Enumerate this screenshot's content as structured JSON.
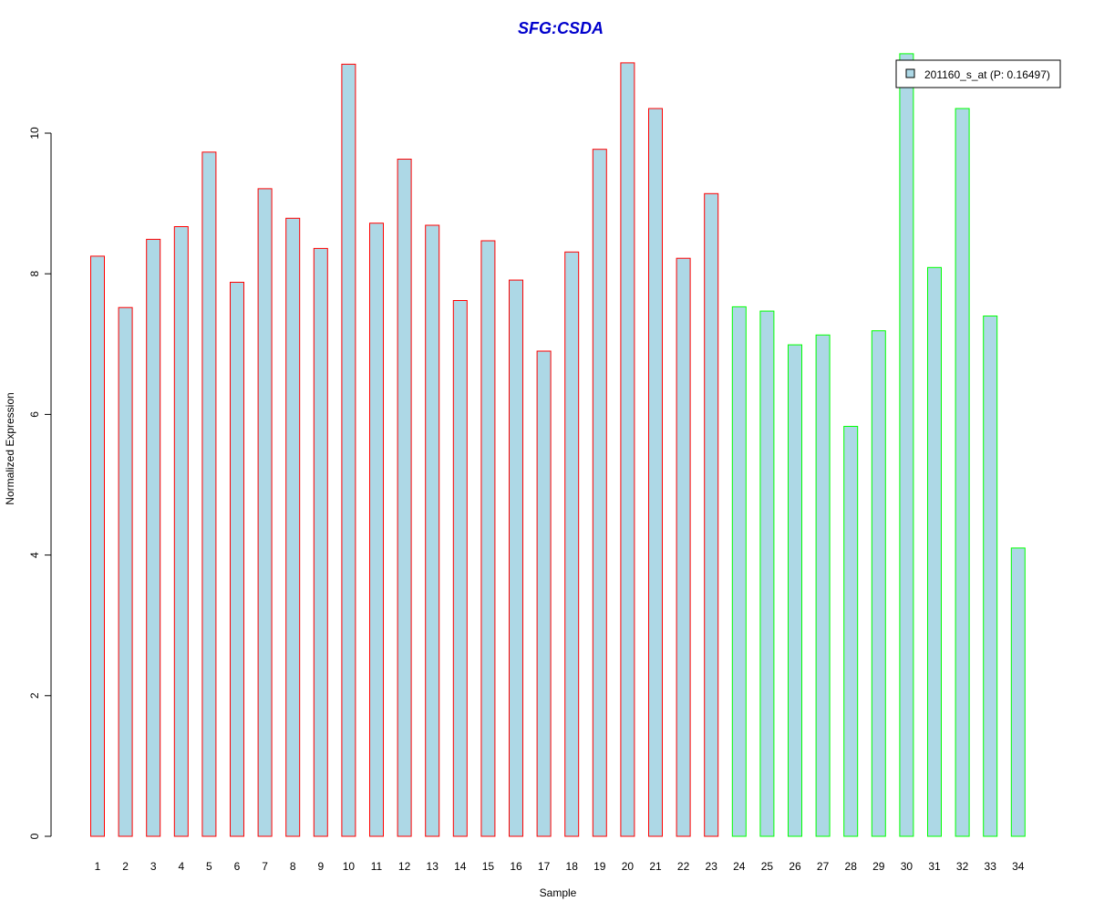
{
  "chart_data": {
    "type": "bar",
    "title": "SFG:CSDA",
    "xlabel": "Sample",
    "ylabel": "Normalized Expression",
    "ylim": [
      0,
      11
    ],
    "y_ticks": [
      0,
      2,
      4,
      6,
      8,
      10
    ],
    "grid": false,
    "legend_position": "top-right",
    "categories": [
      "1",
      "2",
      "3",
      "4",
      "5",
      "6",
      "7",
      "8",
      "9",
      "10",
      "11",
      "12",
      "13",
      "14",
      "15",
      "16",
      "17",
      "18",
      "19",
      "20",
      "21",
      "22",
      "23",
      "24",
      "25",
      "26",
      "27",
      "28",
      "29",
      "30",
      "31",
      "32",
      "33",
      "34"
    ],
    "series": [
      {
        "name": "201160_s_at (P: 0.16497)",
        "values": [
          8.25,
          7.52,
          8.49,
          8.67,
          9.73,
          7.88,
          9.21,
          8.79,
          8.36,
          10.98,
          8.72,
          9.63,
          8.69,
          7.62,
          8.47,
          7.91,
          6.9,
          8.31,
          9.77,
          11.0,
          10.35,
          8.22,
          9.14,
          7.53,
          7.47,
          6.99,
          7.13,
          5.83,
          7.19,
          11.13,
          8.09,
          10.35,
          7.4,
          4.1
        ],
        "fill_color": "#ADD8E6",
        "border_colors": [
          "#FF0000",
          "#FF0000",
          "#FF0000",
          "#FF0000",
          "#FF0000",
          "#FF0000",
          "#FF0000",
          "#FF0000",
          "#FF0000",
          "#FF0000",
          "#FF0000",
          "#FF0000",
          "#FF0000",
          "#FF0000",
          "#FF0000",
          "#FF0000",
          "#FF0000",
          "#FF0000",
          "#FF0000",
          "#FF0000",
          "#FF0000",
          "#FF0000",
          "#FF0000",
          "#00FF00",
          "#00FF00",
          "#00FF00",
          "#00FF00",
          "#00FF00",
          "#00FF00",
          "#00FF00",
          "#00FF00",
          "#00FF00",
          "#00FF00",
          "#00FF00"
        ]
      }
    ],
    "title_color": "#0000CC"
  }
}
